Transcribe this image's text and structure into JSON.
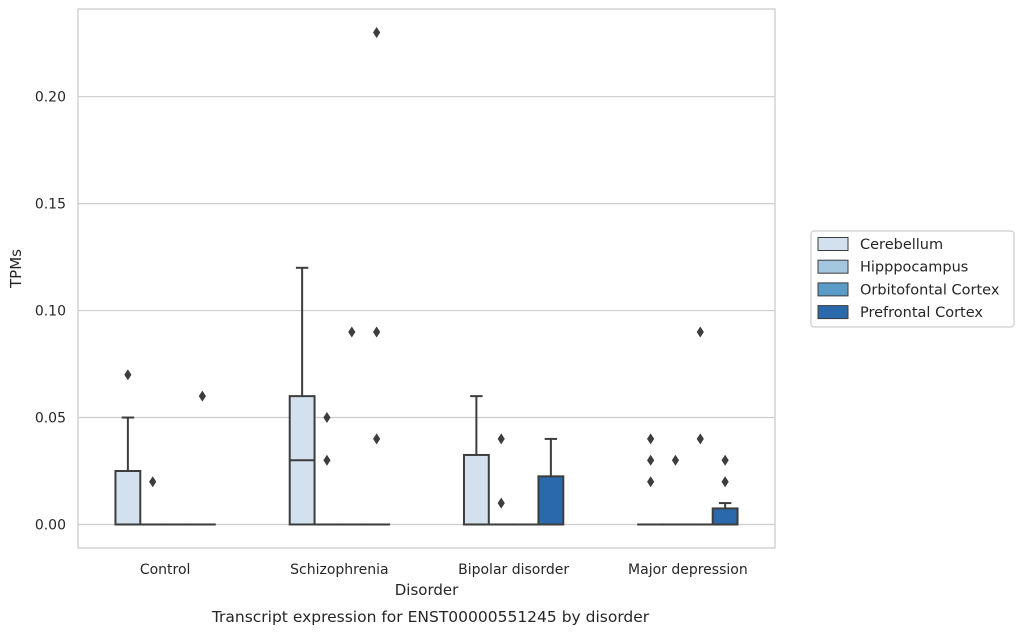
{
  "chart_data": {
    "type": "box",
    "xlabel": "Disorder",
    "ylabel": "TPMs",
    "caption": "Transcript expression for ENST00000551245 by disorder",
    "ylim": [
      -0.011,
      0.241
    ],
    "yticks": [
      0.0,
      0.05,
      0.1,
      0.15,
      0.2
    ],
    "ytick_labels": [
      "0.00",
      "0.05",
      "0.10",
      "0.15",
      "0.20"
    ],
    "grid": "horizontal",
    "legend_position": "right",
    "categories": [
      "Control",
      "Schizophrenia",
      "Bipolar disorder",
      "Major depression"
    ],
    "series": [
      {
        "name": "Cerebellum",
        "color": "#d3e1ef",
        "boxes": [
          {
            "whislo": 0,
            "q1": 0,
            "med": 0,
            "q3": 0.025,
            "whishi": 0.05,
            "fliers": [
              0.07
            ]
          },
          {
            "whislo": 0,
            "q1": 0,
            "med": 0.03,
            "q3": 0.06,
            "whishi": 0.12,
            "fliers": []
          },
          {
            "whislo": 0,
            "q1": 0,
            "med": 0,
            "q3": 0.0325,
            "whishi": 0.06,
            "fliers": []
          },
          {
            "whislo": 0,
            "q1": 0,
            "med": 0,
            "q3": 0,
            "whishi": 0,
            "fliers": [
              0.04,
              0.03,
              0.02
            ]
          }
        ]
      },
      {
        "name": "Hipppocampus",
        "color": "#a5c6df",
        "boxes": [
          {
            "whislo": 0,
            "q1": 0,
            "med": 0,
            "q3": 0,
            "whishi": 0,
            "fliers": [
              0.02
            ]
          },
          {
            "whislo": 0,
            "q1": 0,
            "med": 0,
            "q3": 0,
            "whishi": 0,
            "fliers": [
              0.05,
              0.03
            ]
          },
          {
            "whislo": 0,
            "q1": 0,
            "med": 0,
            "q3": 0,
            "whishi": 0,
            "fliers": [
              0.04,
              0.01
            ]
          },
          {
            "whislo": 0,
            "q1": 0,
            "med": 0,
            "q3": 0,
            "whishi": 0,
            "fliers": [
              0.03
            ]
          }
        ]
      },
      {
        "name": "Orbitofontal Cortex",
        "color": "#5b9bc8",
        "boxes": [
          {
            "whislo": 0,
            "q1": 0,
            "med": 0,
            "q3": 0,
            "whishi": 0,
            "fliers": []
          },
          {
            "whislo": 0,
            "q1": 0,
            "med": 0,
            "q3": 0,
            "whishi": 0,
            "fliers": [
              0.09
            ]
          },
          {
            "whislo": 0,
            "q1": 0,
            "med": 0,
            "q3": 0,
            "whishi": 0,
            "fliers": []
          },
          {
            "whislo": 0,
            "q1": 0,
            "med": 0,
            "q3": 0,
            "whishi": 0,
            "fliers": [
              0.09,
              0.04
            ]
          }
        ]
      },
      {
        "name": "Prefrontal Cortex",
        "color": "#2a69ab",
        "boxes": [
          {
            "whislo": 0,
            "q1": 0,
            "med": 0,
            "q3": 0,
            "whishi": 0,
            "fliers": [
              0.06
            ]
          },
          {
            "whislo": 0,
            "q1": 0,
            "med": 0,
            "q3": 0,
            "whishi": 0,
            "fliers": [
              0.23,
              0.09,
              0.04
            ]
          },
          {
            "whislo": 0,
            "q1": 0,
            "med": 0,
            "q3": 0.0225,
            "whishi": 0.04,
            "fliers": []
          },
          {
            "whislo": 0,
            "q1": 0,
            "med": 0,
            "q3": 0.0075,
            "whishi": 0.01,
            "fliers": [
              0.03,
              0.02
            ]
          }
        ]
      }
    ]
  }
}
